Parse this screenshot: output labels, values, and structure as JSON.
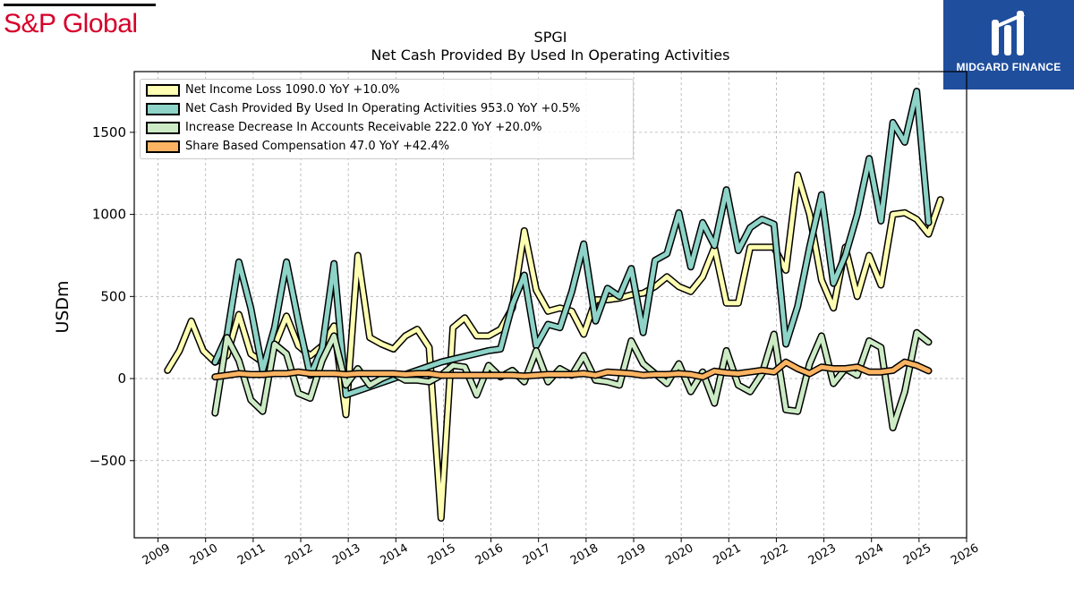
{
  "branding": {
    "company_logo_text": "S&P Global",
    "publisher_logo_text": "MIDGARD FINANCE"
  },
  "chart_data": {
    "type": "line",
    "title": "SPGI",
    "subtitle": "Net Cash Provided By Used In Operating Activities",
    "xlabel": "",
    "ylabel": "USDm",
    "xlim": [
      2008.5,
      2026.0
    ],
    "ylim": [
      -970,
      1870
    ],
    "x_ticks": [
      "2009",
      "2010",
      "2011",
      "2012",
      "2013",
      "2014",
      "2015",
      "2016",
      "2017",
      "2018",
      "2019",
      "2020",
      "2021",
      "2022",
      "2023",
      "2024",
      "2025",
      "2026"
    ],
    "y_ticks": [
      -500,
      0,
      500,
      1000,
      1500
    ],
    "y_tick_labels": [
      "−500",
      "0",
      "500",
      "1000",
      "1500"
    ],
    "grid": true,
    "legend_position": "top-left",
    "series": [
      {
        "name": "Net Income Loss",
        "legend": "Net Income Loss  1090.0 YoY +10.0%",
        "color": "#ffffb3",
        "points": [
          [
            2009.2,
            50
          ],
          [
            2009.45,
            170
          ],
          [
            2009.7,
            350
          ],
          [
            2009.95,
            170
          ],
          [
            2010.2,
            100
          ],
          [
            2010.45,
            140
          ],
          [
            2010.7,
            390
          ],
          [
            2010.95,
            150
          ],
          [
            2011.2,
            100
          ],
          [
            2011.45,
            200
          ],
          [
            2011.7,
            380
          ],
          [
            2011.95,
            200
          ],
          [
            2012.2,
            140
          ],
          [
            2012.45,
            200
          ],
          [
            2012.7,
            320
          ],
          [
            2012.95,
            -220
          ],
          [
            2013.2,
            750
          ],
          [
            2013.45,
            250
          ],
          [
            2013.7,
            210
          ],
          [
            2013.95,
            180
          ],
          [
            2014.2,
            260
          ],
          [
            2014.45,
            300
          ],
          [
            2014.7,
            190
          ],
          [
            2014.95,
            -850
          ],
          [
            2015.2,
            310
          ],
          [
            2015.45,
            370
          ],
          [
            2015.7,
            260
          ],
          [
            2015.95,
            260
          ],
          [
            2016.2,
            300
          ],
          [
            2016.45,
            430
          ],
          [
            2016.7,
            900
          ],
          [
            2016.95,
            540
          ],
          [
            2017.2,
            410
          ],
          [
            2017.45,
            430
          ],
          [
            2017.7,
            410
          ],
          [
            2017.95,
            270
          ],
          [
            2018.2,
            480
          ],
          [
            2018.45,
            480
          ],
          [
            2018.7,
            490
          ],
          [
            2018.95,
            510
          ],
          [
            2019.2,
            520
          ],
          [
            2019.45,
            560
          ],
          [
            2019.7,
            620
          ],
          [
            2019.95,
            560
          ],
          [
            2020.2,
            530
          ],
          [
            2020.45,
            620
          ],
          [
            2020.7,
            800
          ],
          [
            2020.95,
            460
          ],
          [
            2021.2,
            460
          ],
          [
            2021.45,
            800
          ],
          [
            2021.7,
            800
          ],
          [
            2021.95,
            800
          ],
          [
            2022.2,
            660
          ],
          [
            2022.45,
            1240
          ],
          [
            2022.7,
            1000
          ],
          [
            2022.95,
            600
          ],
          [
            2023.2,
            430
          ],
          [
            2023.45,
            800
          ],
          [
            2023.7,
            500
          ],
          [
            2023.95,
            750
          ],
          [
            2024.2,
            570
          ],
          [
            2024.45,
            1000
          ],
          [
            2024.7,
            1010
          ],
          [
            2024.95,
            970
          ],
          [
            2025.2,
            880
          ],
          [
            2025.45,
            1090
          ]
        ]
      },
      {
        "name": "Net Cash Provided By Used In Operating Activities",
        "legend": "Net Cash Provided By Used In Operating Activities  953.0 YoY +0.5%",
        "color": "#8dd3c7",
        "points": [
          [
            2010.2,
            100
          ],
          [
            2010.45,
            260
          ],
          [
            2010.7,
            710
          ],
          [
            2010.95,
            430
          ],
          [
            2011.2,
            50
          ],
          [
            2011.45,
            310
          ],
          [
            2011.7,
            710
          ],
          [
            2011.95,
            350
          ],
          [
            2012.2,
            20
          ],
          [
            2012.45,
            180
          ],
          [
            2012.7,
            700
          ],
          [
            2012.95,
            -100
          ],
          [
            2014.95,
            100
          ],
          [
            2015.95,
            170
          ],
          [
            2016.2,
            180
          ],
          [
            2016.45,
            450
          ],
          [
            2016.7,
            630
          ],
          [
            2016.95,
            200
          ],
          [
            2017.2,
            330
          ],
          [
            2017.45,
            310
          ],
          [
            2017.7,
            530
          ],
          [
            2017.95,
            820
          ],
          [
            2018.2,
            350
          ],
          [
            2018.45,
            550
          ],
          [
            2018.7,
            500
          ],
          [
            2018.95,
            670
          ],
          [
            2019.2,
            280
          ],
          [
            2019.45,
            720
          ],
          [
            2019.7,
            760
          ],
          [
            2019.95,
            1010
          ],
          [
            2020.2,
            680
          ],
          [
            2020.45,
            950
          ],
          [
            2020.7,
            810
          ],
          [
            2020.95,
            1150
          ],
          [
            2021.2,
            780
          ],
          [
            2021.45,
            920
          ],
          [
            2021.7,
            970
          ],
          [
            2021.95,
            940
          ],
          [
            2022.2,
            210
          ],
          [
            2022.45,
            440
          ],
          [
            2022.7,
            800
          ],
          [
            2022.95,
            1120
          ],
          [
            2023.2,
            580
          ],
          [
            2023.45,
            750
          ],
          [
            2023.7,
            1000
          ],
          [
            2023.95,
            1340
          ],
          [
            2024.2,
            960
          ],
          [
            2024.45,
            1560
          ],
          [
            2024.7,
            1440
          ],
          [
            2024.95,
            1750
          ],
          [
            2025.2,
            950
          ]
        ]
      },
      {
        "name": "Increase Decrease In Accounts Receivable",
        "legend": "Increase Decrease In Accounts Receivable  222.0 YoY +20.0%",
        "color": "#ccebc5",
        "points": [
          [
            2010.2,
            -210
          ],
          [
            2010.45,
            250
          ],
          [
            2010.7,
            110
          ],
          [
            2010.95,
            -130
          ],
          [
            2011.2,
            -200
          ],
          [
            2011.45,
            210
          ],
          [
            2011.7,
            150
          ],
          [
            2011.95,
            -90
          ],
          [
            2012.2,
            -120
          ],
          [
            2012.45,
            110
          ],
          [
            2012.7,
            260
          ],
          [
            2012.95,
            -40
          ],
          [
            2013.2,
            60
          ],
          [
            2013.45,
            -40
          ],
          [
            2013.7,
            0
          ],
          [
            2013.95,
            30
          ],
          [
            2014.2,
            -10
          ],
          [
            2014.45,
            -10
          ],
          [
            2014.7,
            -20
          ],
          [
            2014.95,
            20
          ],
          [
            2015.2,
            80
          ],
          [
            2015.45,
            70
          ],
          [
            2015.7,
            -100
          ],
          [
            2015.95,
            80
          ],
          [
            2016.2,
            10
          ],
          [
            2016.45,
            50
          ],
          [
            2016.7,
            -20
          ],
          [
            2016.95,
            170
          ],
          [
            2017.2,
            -20
          ],
          [
            2017.45,
            60
          ],
          [
            2017.7,
            20
          ],
          [
            2017.95,
            140
          ],
          [
            2018.2,
            -10
          ],
          [
            2018.45,
            -20
          ],
          [
            2018.7,
            -40
          ],
          [
            2018.95,
            230
          ],
          [
            2019.2,
            90
          ],
          [
            2019.45,
            30
          ],
          [
            2019.7,
            -30
          ],
          [
            2019.95,
            90
          ],
          [
            2020.2,
            -80
          ],
          [
            2020.45,
            40
          ],
          [
            2020.7,
            -150
          ],
          [
            2020.95,
            170
          ],
          [
            2021.2,
            -40
          ],
          [
            2021.45,
            -80
          ],
          [
            2021.7,
            30
          ],
          [
            2021.95,
            270
          ],
          [
            2022.2,
            -190
          ],
          [
            2022.45,
            -200
          ],
          [
            2022.7,
            90
          ],
          [
            2022.95,
            260
          ],
          [
            2023.2,
            -30
          ],
          [
            2023.45,
            60
          ],
          [
            2023.7,
            20
          ],
          [
            2023.95,
            230
          ],
          [
            2024.2,
            190
          ],
          [
            2024.45,
            -300
          ],
          [
            2024.7,
            -80
          ],
          [
            2024.95,
            280
          ],
          [
            2025.2,
            222
          ]
        ]
      },
      {
        "name": "Share Based Compensation",
        "legend": "Share Based Compensation  47.0 YoY +42.4%",
        "color": "#fdb462",
        "points": [
          [
            2010.2,
            10
          ],
          [
            2010.45,
            20
          ],
          [
            2010.7,
            30
          ],
          [
            2010.95,
            25
          ],
          [
            2011.2,
            25
          ],
          [
            2011.45,
            30
          ],
          [
            2011.7,
            30
          ],
          [
            2011.95,
            40
          ],
          [
            2012.2,
            30
          ],
          [
            2012.45,
            30
          ],
          [
            2012.7,
            30
          ],
          [
            2012.95,
            25
          ],
          [
            2013.2,
            30
          ],
          [
            2013.45,
            30
          ],
          [
            2013.7,
            30
          ],
          [
            2013.95,
            30
          ],
          [
            2014.2,
            25
          ],
          [
            2014.45,
            30
          ],
          [
            2014.7,
            30
          ],
          [
            2014.95,
            20
          ],
          [
            2015.2,
            20
          ],
          [
            2015.45,
            20
          ],
          [
            2015.7,
            20
          ],
          [
            2015.95,
            20
          ],
          [
            2016.2,
            20
          ],
          [
            2016.45,
            20
          ],
          [
            2016.7,
            15
          ],
          [
            2016.95,
            20
          ],
          [
            2017.2,
            25
          ],
          [
            2017.45,
            25
          ],
          [
            2017.7,
            25
          ],
          [
            2017.95,
            30
          ],
          [
            2018.2,
            20
          ],
          [
            2018.45,
            40
          ],
          [
            2018.7,
            35
          ],
          [
            2018.95,
            30
          ],
          [
            2019.2,
            20
          ],
          [
            2019.45,
            25
          ],
          [
            2019.7,
            25
          ],
          [
            2019.95,
            30
          ],
          [
            2020.2,
            25
          ],
          [
            2020.45,
            10
          ],
          [
            2020.7,
            45
          ],
          [
            2020.95,
            35
          ],
          [
            2021.2,
            30
          ],
          [
            2021.45,
            40
          ],
          [
            2021.7,
            50
          ],
          [
            2021.95,
            40
          ],
          [
            2022.2,
            100
          ],
          [
            2022.45,
            60
          ],
          [
            2022.7,
            30
          ],
          [
            2022.95,
            70
          ],
          [
            2023.2,
            60
          ],
          [
            2023.45,
            60
          ],
          [
            2023.7,
            70
          ],
          [
            2023.95,
            40
          ],
          [
            2024.2,
            40
          ],
          [
            2024.45,
            50
          ],
          [
            2024.7,
            100
          ],
          [
            2024.95,
            80
          ],
          [
            2025.2,
            47
          ]
        ]
      }
    ]
  }
}
